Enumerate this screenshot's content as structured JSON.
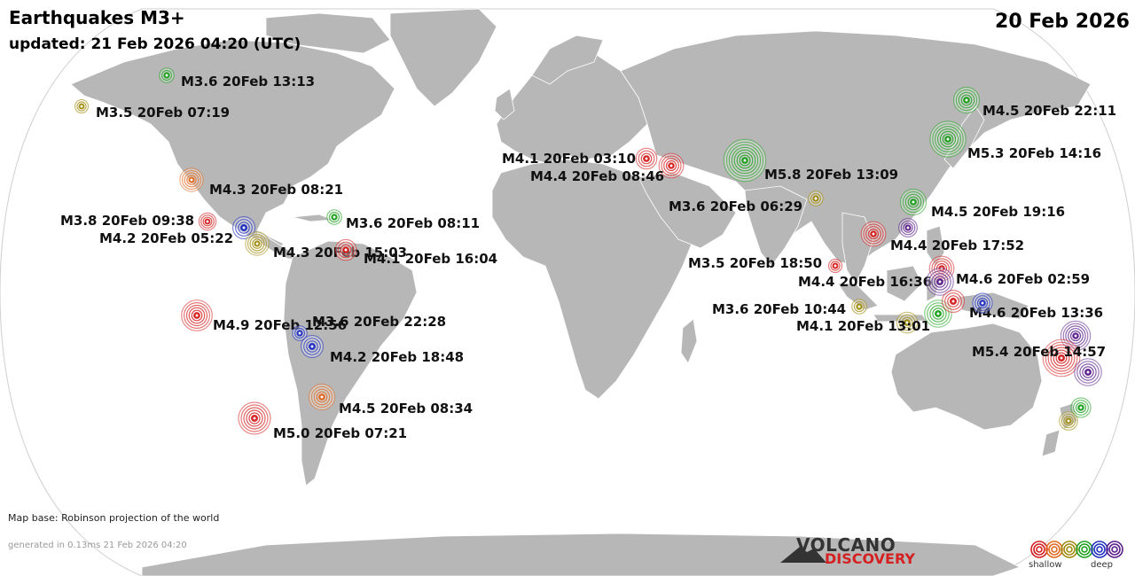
{
  "header": {
    "title": "Earthquakes M3+",
    "updated": "updated: 21 Feb 2026 04:20 (UTC)",
    "date": "20 Feb 2026"
  },
  "footer": {
    "map_base": "Map base: Robinson projection of the world",
    "generated": "generated in 0.13ms 21 Feb 2026 04:20",
    "logo_top": "VOLCANO",
    "logo_bottom": "DISCOVERY"
  },
  "legend": {
    "shallow": "shallow",
    "deep": "deep",
    "colors": [
      "#d42020",
      "#e06a20",
      "#a08c10",
      "#20a020",
      "#2030c0",
      "#5a1f8a"
    ]
  },
  "colors": {
    "ocean": "#ffffff",
    "land": "#b7b7b7",
    "land_border": "#ffffff",
    "map_outline": "#cfcfcf"
  },
  "quakes": [
    {
      "label": "M3.6 20Feb 13:13",
      "mag": 3.6,
      "color": "#20a020"
    },
    {
      "label": "M3.5 20Feb 07:19",
      "mag": 3.5,
      "color": "#a08c10"
    },
    {
      "label": "M4.3 20Feb 08:21",
      "mag": 4.3,
      "color": "#e06a20"
    },
    {
      "label": "M3.8 20Feb 09:38",
      "mag": 3.8,
      "color": "#d42020"
    },
    {
      "label": "M4.2 20Feb 05:22",
      "mag": 4.2,
      "color": "#2030c0"
    },
    {
      "label": "M3.6 20Feb 08:11",
      "mag": 3.6,
      "color": "#20a020"
    },
    {
      "label": "M4.3 20Feb 15:03",
      "mag": 4.3,
      "color": "#a08c10"
    },
    {
      "label": "M4.1 20Feb 16:04",
      "mag": 4.1,
      "color": "#d42020"
    },
    {
      "label": "M4.9 20Feb 12:56",
      "mag": 4.9,
      "color": "#d42020"
    },
    {
      "label": "M3.6 20Feb 22:28",
      "mag": 3.6,
      "color": "#2030c0"
    },
    {
      "label": "M4.2 20Feb 18:48",
      "mag": 4.2,
      "color": "#2030c0"
    },
    {
      "label": "M4.5 20Feb 08:34",
      "mag": 4.5,
      "color": "#e06a20"
    },
    {
      "label": "M5.0 20Feb 07:21",
      "mag": 5.0,
      "color": "#d42020"
    },
    {
      "label": "M4.1 20Feb 03:10",
      "mag": 4.1,
      "color": "#d42020"
    },
    {
      "label": "M4.4 20Feb 08:46",
      "mag": 4.4,
      "color": "#d42020"
    },
    {
      "label": "M5.8 20Feb 13:09",
      "mag": 5.8,
      "color": "#20a020"
    },
    {
      "label": "M3.6 20Feb 06:29",
      "mag": 3.6,
      "color": "#a08c10"
    },
    {
      "label": "M4.5 20Feb 22:11",
      "mag": 4.5,
      "color": "#20a020"
    },
    {
      "label": "M5.3 20Feb 14:16",
      "mag": 5.3,
      "color": "#20a020"
    },
    {
      "label": "M4.5 20Feb 19:16",
      "mag": 4.5,
      "color": "#20a020"
    },
    {
      "label": "M4.4 20Feb 17:52",
      "mag": 4.4,
      "color": "#d42020"
    },
    {
      "label": "",
      "mag": 3.9,
      "color": "#5a1f8a"
    },
    {
      "label": "M3.5 20Feb 18:50",
      "mag": 3.5,
      "color": "#d42020"
    },
    {
      "label": "M4.4 20Feb 16:36",
      "mag": 4.4,
      "color": "#d42020"
    },
    {
      "label": "M4.6 20Feb 02:59",
      "mag": 4.6,
      "color": "#5a1f8a"
    },
    {
      "label": "M3.6 20Feb 10:44",
      "mag": 3.6,
      "color": "#a08c10"
    },
    {
      "label": "M4.1 20Feb 13:01",
      "mag": 4.1,
      "color": "#a08c10"
    },
    {
      "label": "M4.6 20Feb 13:36",
      "mag": 4.6,
      "color": "#20a020"
    },
    {
      "label": "",
      "mag": 4.2,
      "color": "#d42020"
    },
    {
      "label": "",
      "mag": 4.0,
      "color": "#2030c0"
    },
    {
      "label": "",
      "mag": 4.8,
      "color": "#5a1f8a"
    },
    {
      "label": "M5.4 20Feb 14:57",
      "mag": 5.4,
      "color": "#d42020"
    },
    {
      "label": "",
      "mag": 4.6,
      "color": "#5a1f8a"
    },
    {
      "label": "",
      "mag": 4.0,
      "color": "#20a020"
    },
    {
      "label": "",
      "mag": 3.9,
      "color": "#a08c10"
    }
  ]
}
